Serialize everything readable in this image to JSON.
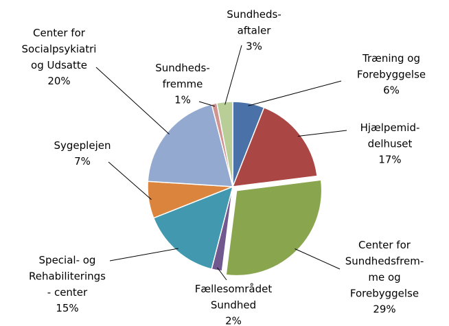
{
  "chart_data": {
    "type": "pie",
    "categories": [
      "Træning og\nForebyggelse",
      "Hjælpemid-\ndelhuset",
      "Center for\nSundhedsfrem-\nme og\nForebyggelse",
      "Fællesområdet\nSundhed",
      "Special- og\nRehabiliterings\n- center",
      "Sygeplejen",
      "Center for\nSocialpsykiatri\nog Udsatte",
      "Sundheds-\nfremme",
      "Sundheds-\naftaler"
    ],
    "values": [
      6,
      17,
      29,
      2,
      15,
      7,
      20,
      1,
      3
    ],
    "value_labels": [
      "6%",
      "17%",
      "29%",
      "2%",
      "15%",
      "7%",
      "20%",
      "1%",
      "3%"
    ],
    "colors": [
      "#4a72a8",
      "#aa4643",
      "#89a54e",
      "#71588f",
      "#4198af",
      "#db843d",
      "#93a9cf",
      "#d19392",
      "#b9cd96"
    ]
  }
}
